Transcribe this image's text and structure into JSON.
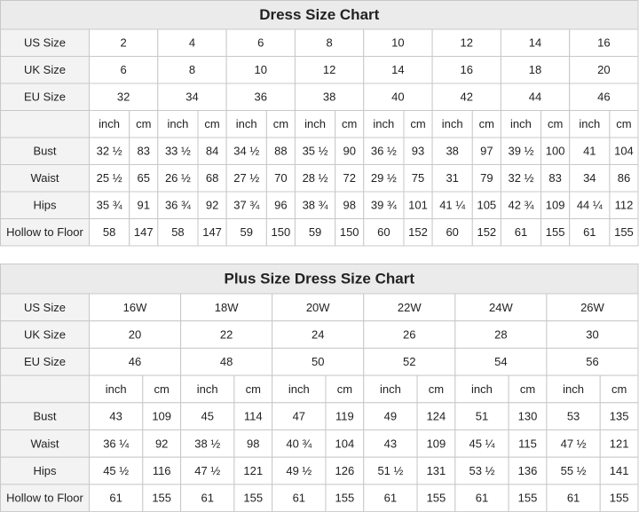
{
  "tables": [
    {
      "title": "Dress Size Chart",
      "size_rows": [
        {
          "label": "US Size",
          "values": [
            "2",
            "4",
            "6",
            "8",
            "10",
            "12",
            "14",
            "16"
          ]
        },
        {
          "label": "UK Size",
          "values": [
            "6",
            "8",
            "10",
            "12",
            "14",
            "16",
            "18",
            "20"
          ]
        },
        {
          "label": "EU Size",
          "values": [
            "32",
            "34",
            "36",
            "38",
            "40",
            "42",
            "44",
            "46"
          ]
        }
      ],
      "units": [
        "inch",
        "cm"
      ],
      "measurements": [
        {
          "label": "Bust",
          "cells": [
            "32 ½",
            "83",
            "33 ½",
            "84",
            "34 ½",
            "88",
            "35 ½",
            "90",
            "36 ½",
            "93",
            "38",
            "97",
            "39 ½",
            "100",
            "41",
            "104"
          ]
        },
        {
          "label": "Waist",
          "cells": [
            "25 ½",
            "65",
            "26 ½",
            "68",
            "27 ½",
            "70",
            "28 ½",
            "72",
            "29 ½",
            "75",
            "31",
            "79",
            "32 ½",
            "83",
            "34",
            "86"
          ]
        },
        {
          "label": "Hips",
          "cells": [
            "35 ¾",
            "91",
            "36 ¾",
            "92",
            "37 ¾",
            "96",
            "38 ¾",
            "98",
            "39 ¾",
            "101",
            "41 ¼",
            "105",
            "42 ¾",
            "109",
            "44 ¼",
            "112"
          ]
        },
        {
          "label": "Hollow to Floor",
          "cells": [
            "58",
            "147",
            "58",
            "147",
            "59",
            "150",
            "59",
            "150",
            "60",
            "152",
            "60",
            "152",
            "61",
            "155",
            "61",
            "155"
          ]
        }
      ]
    },
    {
      "title": "Plus Size Dress Size Chart",
      "size_rows": [
        {
          "label": "US Size",
          "values": [
            "16W",
            "18W",
            "20W",
            "22W",
            "24W",
            "26W"
          ]
        },
        {
          "label": "UK Size",
          "values": [
            "20",
            "22",
            "24",
            "26",
            "28",
            "30"
          ]
        },
        {
          "label": "EU Size",
          "values": [
            "46",
            "48",
            "50",
            "52",
            "54",
            "56"
          ]
        }
      ],
      "units": [
        "inch",
        "cm"
      ],
      "measurements": [
        {
          "label": "Bust",
          "cells": [
            "43",
            "109",
            "45",
            "114",
            "47",
            "119",
            "49",
            "124",
            "51",
            "130",
            "53",
            "135"
          ]
        },
        {
          "label": "Waist",
          "cells": [
            "36 ¼",
            "92",
            "38 ½",
            "98",
            "40 ¾",
            "104",
            "43",
            "109",
            "45 ¼",
            "115",
            "47 ½",
            "121"
          ]
        },
        {
          "label": "Hips",
          "cells": [
            "45 ½",
            "116",
            "47 ½",
            "121",
            "49 ½",
            "126",
            "51 ½",
            "131",
            "53 ½",
            "136",
            "55 ½",
            "141"
          ]
        },
        {
          "label": "Hollow to Floor",
          "cells": [
            "61",
            "155",
            "61",
            "155",
            "61",
            "155",
            "61",
            "155",
            "61",
            "155",
            "61",
            "155"
          ]
        }
      ]
    }
  ]
}
